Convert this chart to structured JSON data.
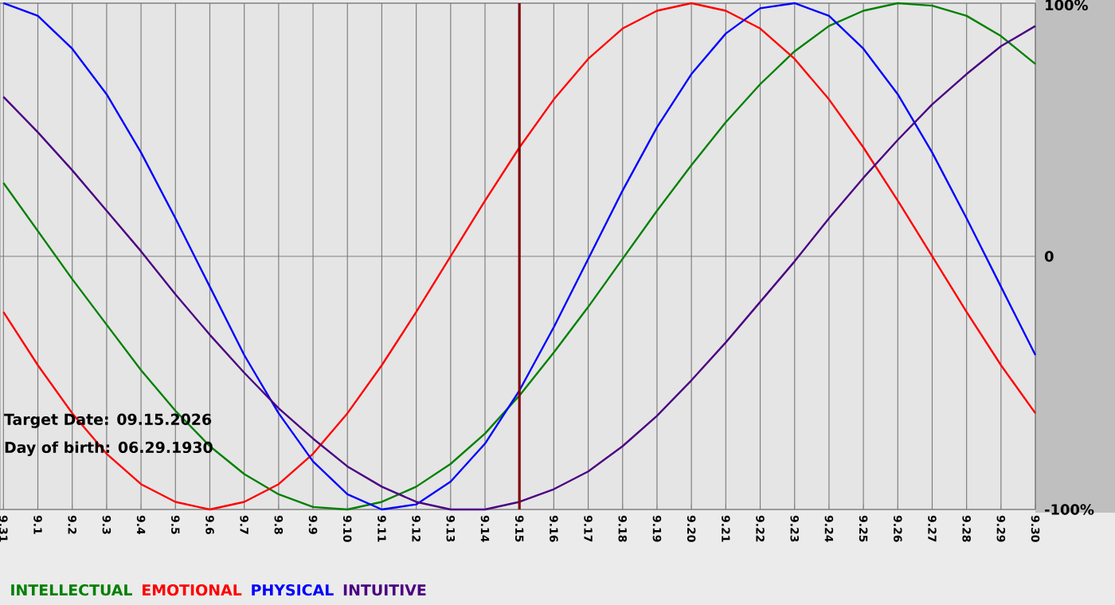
{
  "chart_data": {
    "type": "line",
    "categories": [
      "9.31",
      "9.1",
      "9.2",
      "9.3",
      "9.4",
      "9.5",
      "9.6",
      "9.7",
      "9.8",
      "9.9",
      "9.10",
      "9.11",
      "9.12",
      "9.13",
      "9.14",
      "9.15",
      "9.16",
      "9.17",
      "9.18",
      "9.19",
      "9.20",
      "9.21",
      "9.22",
      "9.23",
      "9.24",
      "9.25",
      "9.26",
      "9.27",
      "9.28",
      "9.29",
      "9.30"
    ],
    "series": [
      {
        "name": "INTELLECTUAL",
        "color": "#008000",
        "values": [
          29,
          10,
          -9,
          -27,
          -45,
          -61,
          -75,
          -86,
          -94,
          -99,
          -100,
          -97,
          -91,
          -82,
          -70,
          -55,
          -38,
          -20,
          -1,
          18,
          36,
          53,
          68,
          81,
          91,
          97,
          100,
          99,
          95,
          87,
          76
        ]
      },
      {
        "name": "EMOTIONAL",
        "color": "#ff0000",
        "values": [
          -22,
          -43,
          -62,
          -78,
          -90,
          -97,
          -100,
          -97,
          -90,
          -78,
          -62,
          -43,
          -22,
          0,
          22,
          43,
          62,
          78,
          90,
          97,
          100,
          97,
          90,
          78,
          62,
          43,
          22,
          0,
          -22,
          -43,
          -62
        ]
      },
      {
        "name": "PHYSICAL",
        "color": "#0000ff",
        "values": [
          100,
          95,
          82,
          64,
          41,
          15,
          -12,
          -39,
          -62,
          -81,
          -94,
          -100,
          -98,
          -89,
          -74,
          -53,
          -28,
          -1,
          26,
          51,
          72,
          88,
          98,
          100,
          95,
          82,
          64,
          41,
          15,
          -12,
          -39
        ]
      },
      {
        "name": "INTUITIVE",
        "color": "#4b0082",
        "values": [
          63,
          49,
          34,
          18,
          2,
          -15,
          -31,
          -46,
          -60,
          -72,
          -83,
          -91,
          -97,
          -100,
          -100,
          -97,
          -92,
          -85,
          -75,
          -63,
          -49,
          -34,
          -18,
          -2,
          15,
          31,
          46,
          60,
          72,
          83,
          91
        ]
      }
    ],
    "ylim": [
      -100,
      100
    ],
    "yticks": [
      {
        "value": 100,
        "label": "100%"
      },
      0,
      {
        "value": -100,
        "label": "-100%"
      }
    ],
    "grid": true,
    "legend": "bottom",
    "ref_lines": [
      {
        "axis": "x",
        "value": "9.15",
        "color": "#800000"
      }
    ],
    "annotations": [
      "Target Date: 09.15.2026",
      "Day of birth: 06.29.1930"
    ]
  }
}
